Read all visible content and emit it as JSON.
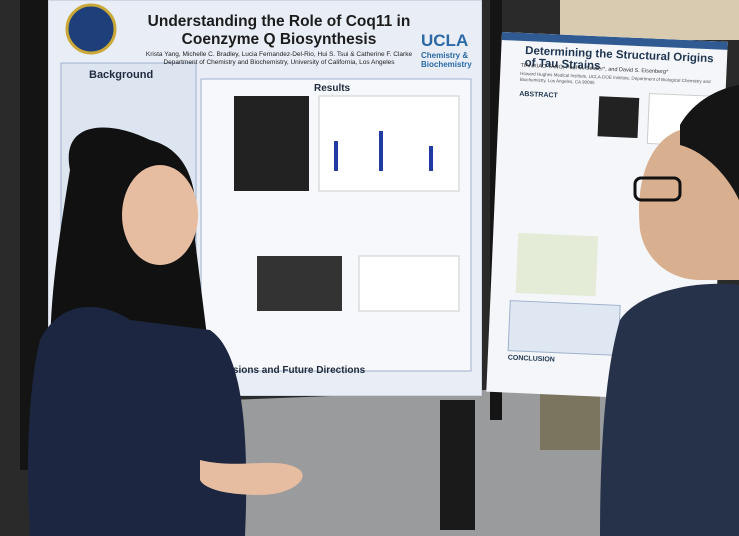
{
  "posters": [
    {
      "title": "Understanding the Role of Coq11 in Coenzyme Q Biosynthesis",
      "authors": "Krista Yang, Michelle C. Bradley, Lucia Fernandez-Del-Rio, Hui S. Tsui & Catherine F. Clarke",
      "affiliation": "Department of Chemistry and Biochemistry, University of California, Los Angeles",
      "logo": {
        "name": "UCLA",
        "subtitle": "Chemistry & Biochemistry"
      },
      "sections": [
        "Background",
        "Results",
        "Conclusions and Future Directions"
      ]
    },
    {
      "title": "Determining the Structural Origins of Tau Strains",
      "authors": "TIANXIAO YANG, Paul M. Seidler*, and David S. Eisenberg*",
      "affiliation": "Howard Hughes Medical Institute, UCLA-DOE Institute, Department of Biological Chemistry and Biochemistry, Los Angeles, CA 90095",
      "sections": [
        "ABSTRACT",
        "CONCLUSION"
      ]
    }
  ]
}
